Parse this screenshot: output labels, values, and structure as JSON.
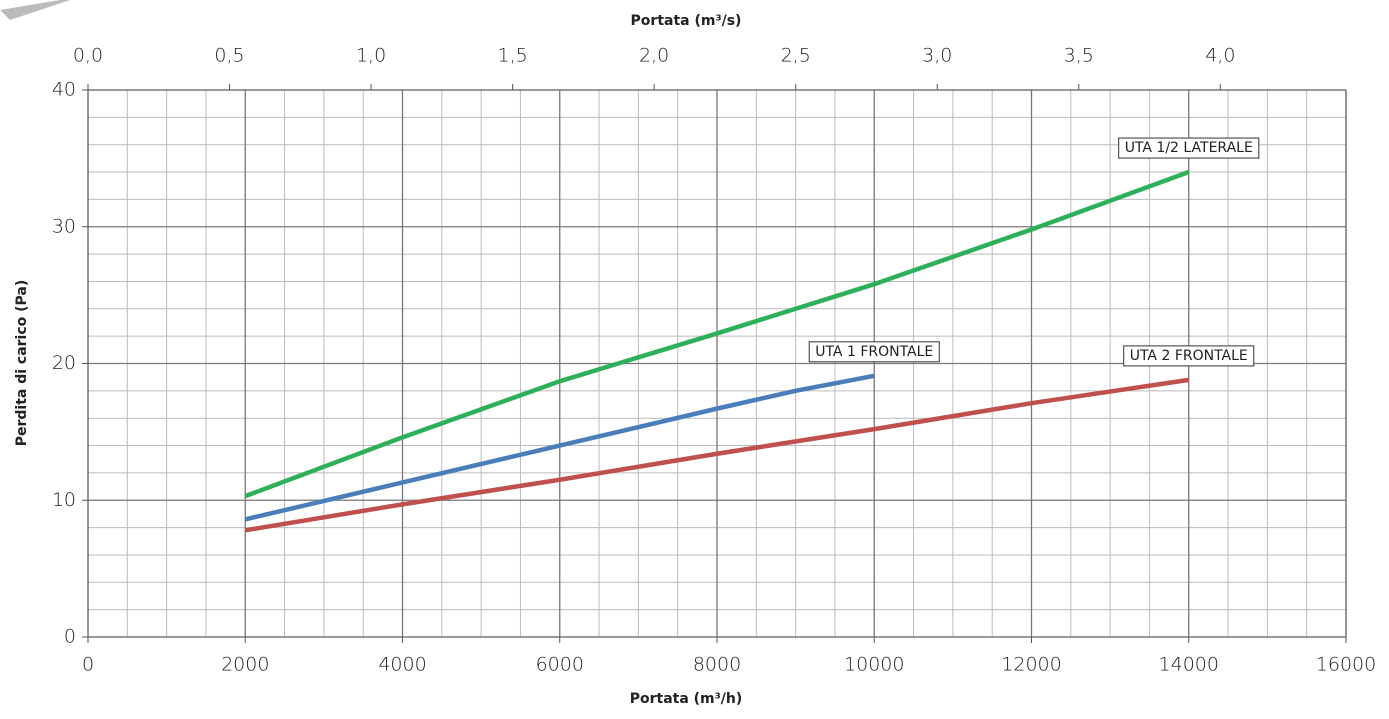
{
  "chart_data": {
    "type": "line",
    "xlabel": "Portata (m³/h)",
    "x2label": "Portata (m³/s)",
    "ylabel": "Perdita di carico (Pa)",
    "xlim": [
      0,
      16000
    ],
    "xticks": [
      0,
      2000,
      4000,
      6000,
      8000,
      10000,
      12000,
      14000,
      16000
    ],
    "x2lim": [
      0,
      4.444
    ],
    "x2ticks": [
      {
        "value": 0,
        "label": "0,0"
      },
      {
        "value": 0.5,
        "label": "0,5"
      },
      {
        "value": 1,
        "label": "1,0"
      },
      {
        "value": 1.5,
        "label": "1,5"
      },
      {
        "value": 2,
        "label": "2,0"
      },
      {
        "value": 2.5,
        "label": "2,5"
      },
      {
        "value": 3,
        "label": "3,0"
      },
      {
        "value": 3.5,
        "label": "3,5"
      },
      {
        "value": 4,
        "label": "4,0"
      }
    ],
    "ylim": [
      0,
      40
    ],
    "yticks": [
      0,
      10,
      20,
      30,
      40
    ],
    "grid": true,
    "series": [
      {
        "name": "UTA 1/2 LATERALE",
        "color": "#2eb05a",
        "x": [
          2000,
          4000,
          6000,
          8000,
          10000,
          12000,
          14000
        ],
        "values": [
          10.3,
          14.6,
          18.7,
          22.2,
          25.8,
          29.8,
          34.0
        ]
      },
      {
        "name": "UTA 1 FRONTALE",
        "color": "#4a7ebb",
        "x": [
          2000,
          4000,
          6000,
          8000,
          9000,
          10000
        ],
        "values": [
          8.6,
          11.3,
          14.0,
          16.7,
          18.0,
          19.1
        ]
      },
      {
        "name": "UTA 2 FRONTALE",
        "color": "#c0504d",
        "x": [
          2000,
          4000,
          6000,
          8000,
          10000,
          12000,
          14000
        ],
        "values": [
          7.8,
          9.7,
          11.5,
          13.4,
          15.2,
          17.1,
          18.8
        ]
      }
    ]
  }
}
